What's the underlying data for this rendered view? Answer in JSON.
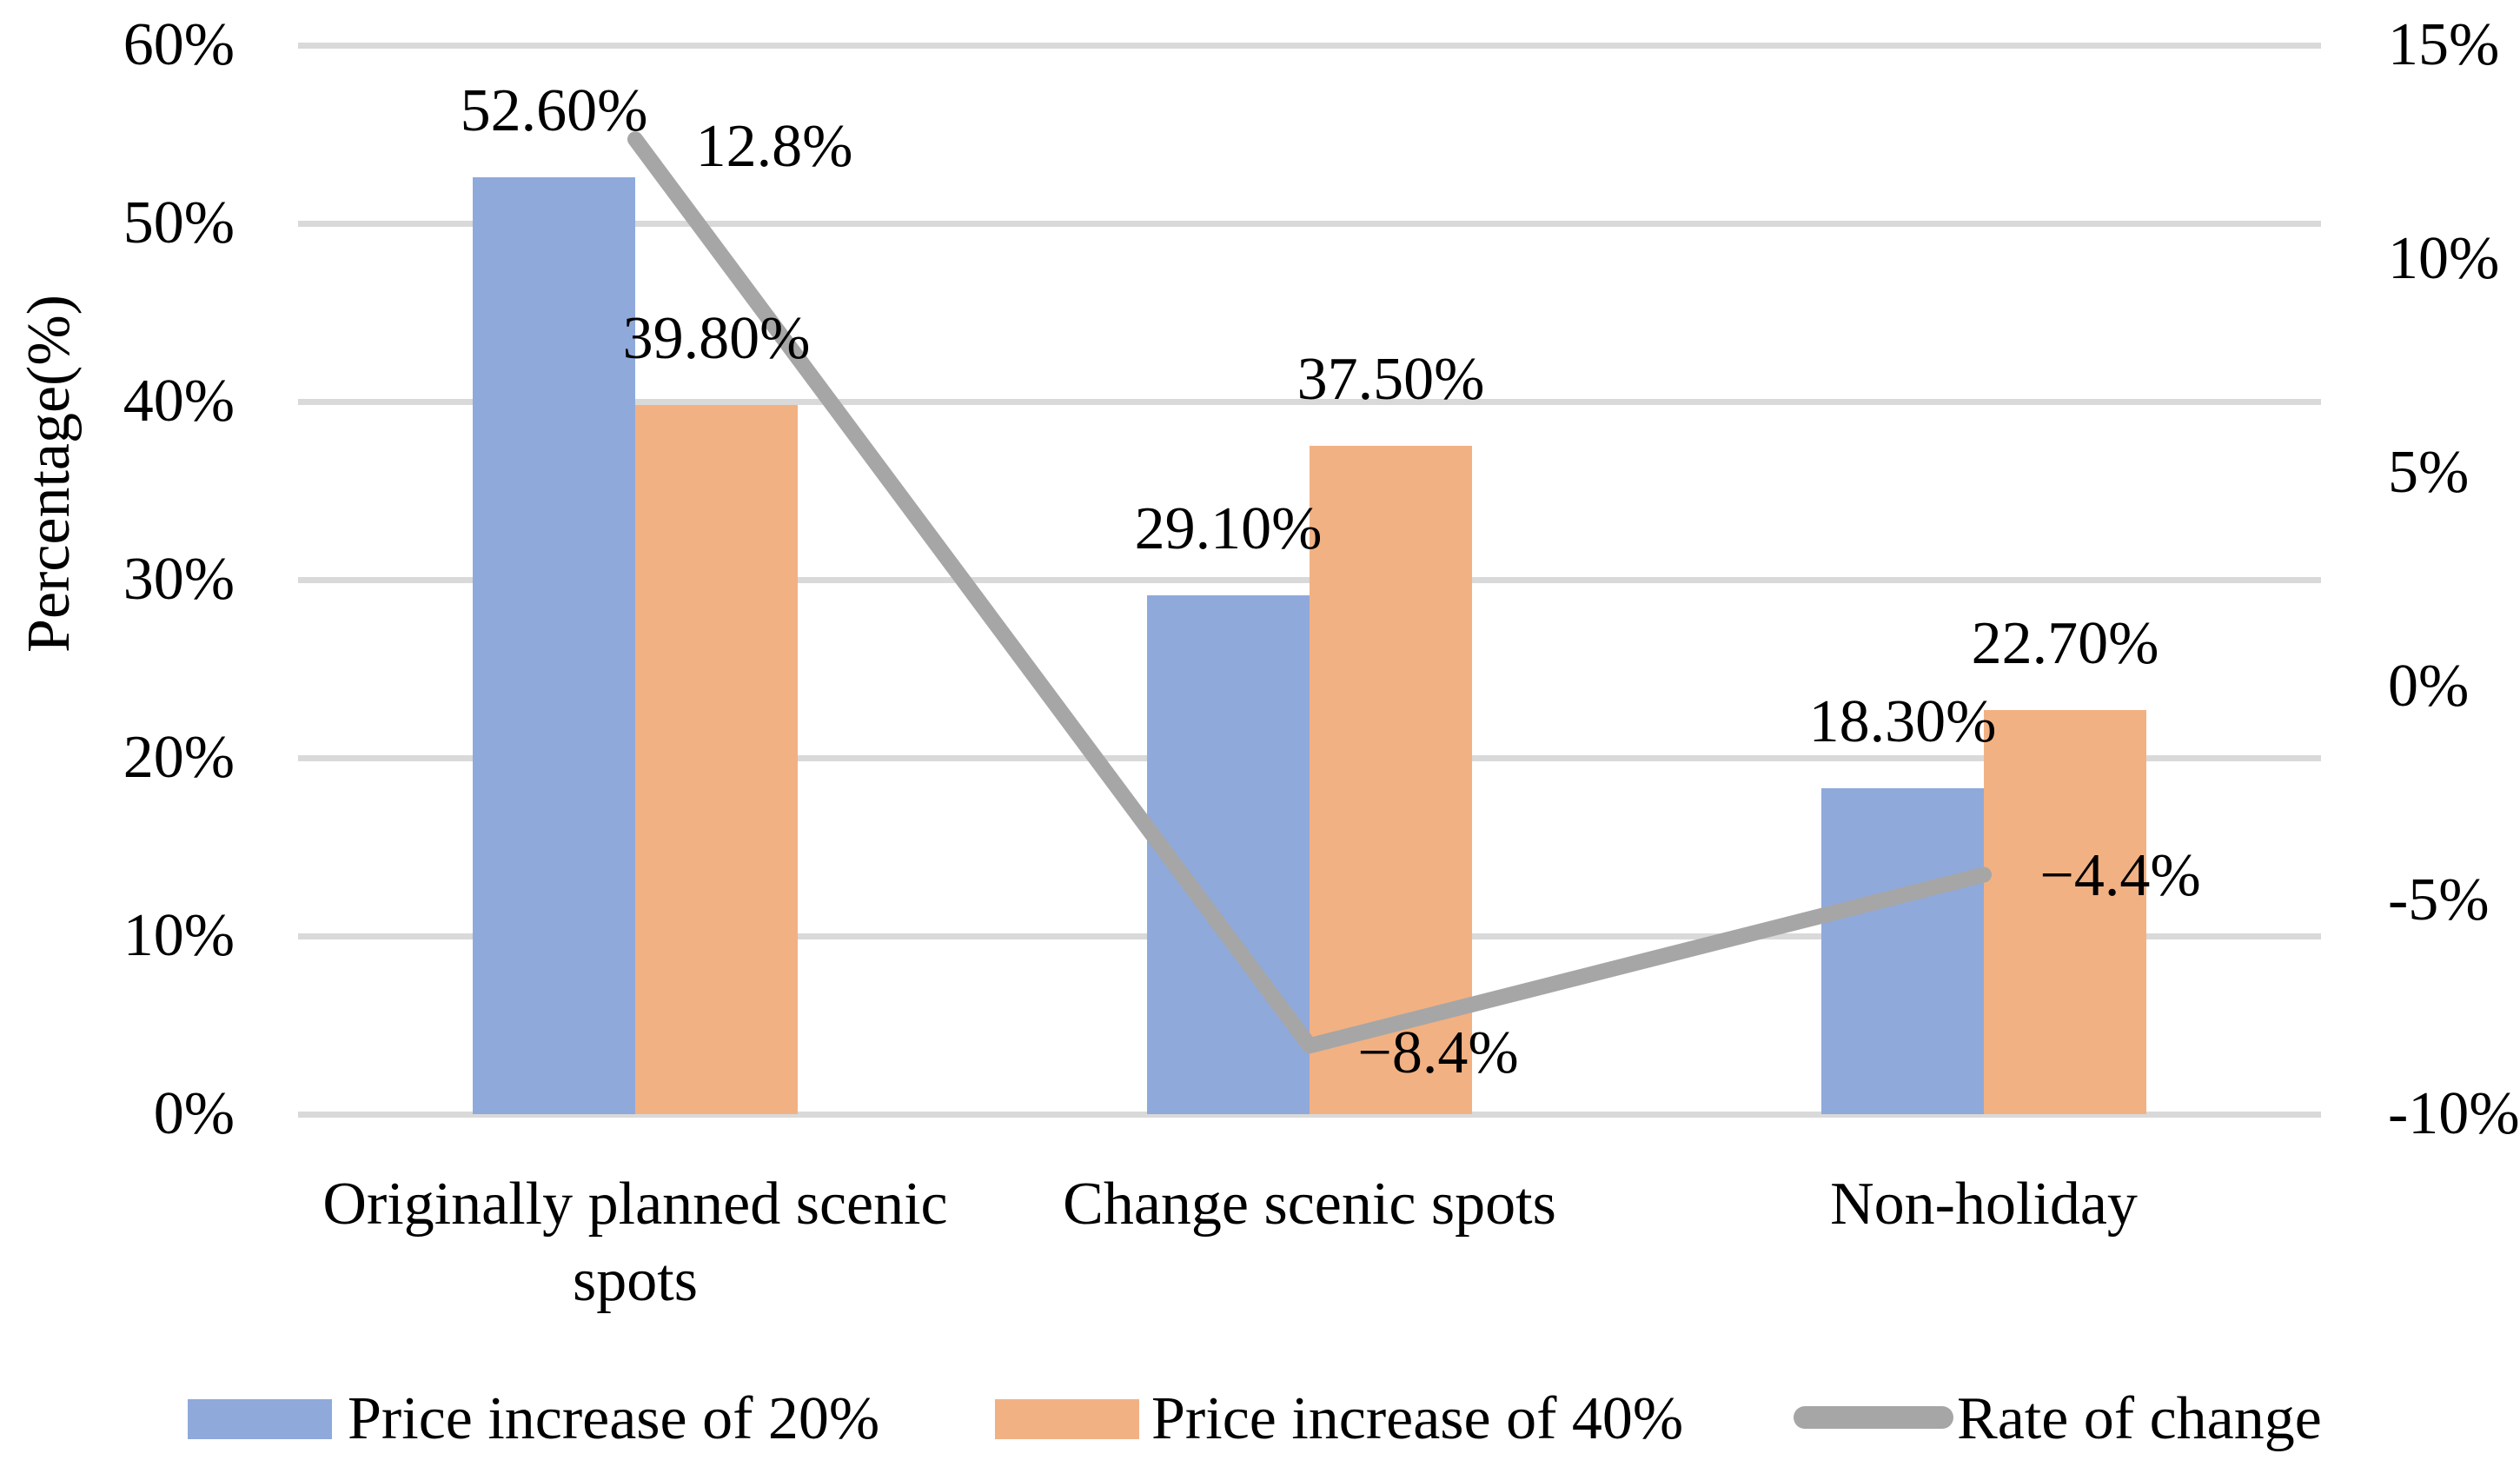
{
  "chart_data": {
    "type": "bar",
    "subtype": "combo-bar-line-dual-axis",
    "title": "",
    "categories": [
      "Originally planned scenic spots",
      "Change scenic spots",
      "Non-holiday"
    ],
    "series": [
      {
        "name": "Price increase of 20%",
        "chart": "bar",
        "axis": "primary",
        "color": "#8FA9DB",
        "values": [
          52.6,
          29.1,
          18.3
        ],
        "data_labels": [
          "52.60%",
          "29.10%",
          "18.30%"
        ]
      },
      {
        "name": "Price increase of 40%",
        "chart": "bar",
        "axis": "primary",
        "color": "#F2B183",
        "values": [
          39.8,
          37.5,
          22.7
        ],
        "data_labels": [
          "39.80%",
          "37.50%",
          "22.70%"
        ]
      },
      {
        "name": "Rate of change",
        "chart": "line",
        "axis": "secondary",
        "color": "#A6A6A6",
        "values": [
          12.8,
          -8.4,
          -4.4
        ],
        "data_labels": [
          "12.8%",
          "−8.4%",
          "−4.4%"
        ]
      }
    ],
    "ylabel": "Percentage(%)",
    "axes": {
      "left": {
        "min": 0,
        "max": 60,
        "step": 10,
        "ticks": [
          "60%",
          "50%",
          "40%",
          "30%",
          "20%",
          "10%",
          "0%"
        ]
      },
      "right": {
        "min": -10,
        "max": 15,
        "step": 5,
        "ticks": [
          "15%",
          "10%",
          "5%",
          "0%",
          "-5%",
          "-10%"
        ]
      }
    },
    "grid": true,
    "gridline_color": "#D9D9D9",
    "background_color": "#FFFFFF",
    "text_color": "#000000",
    "legend_position": "bottom"
  }
}
